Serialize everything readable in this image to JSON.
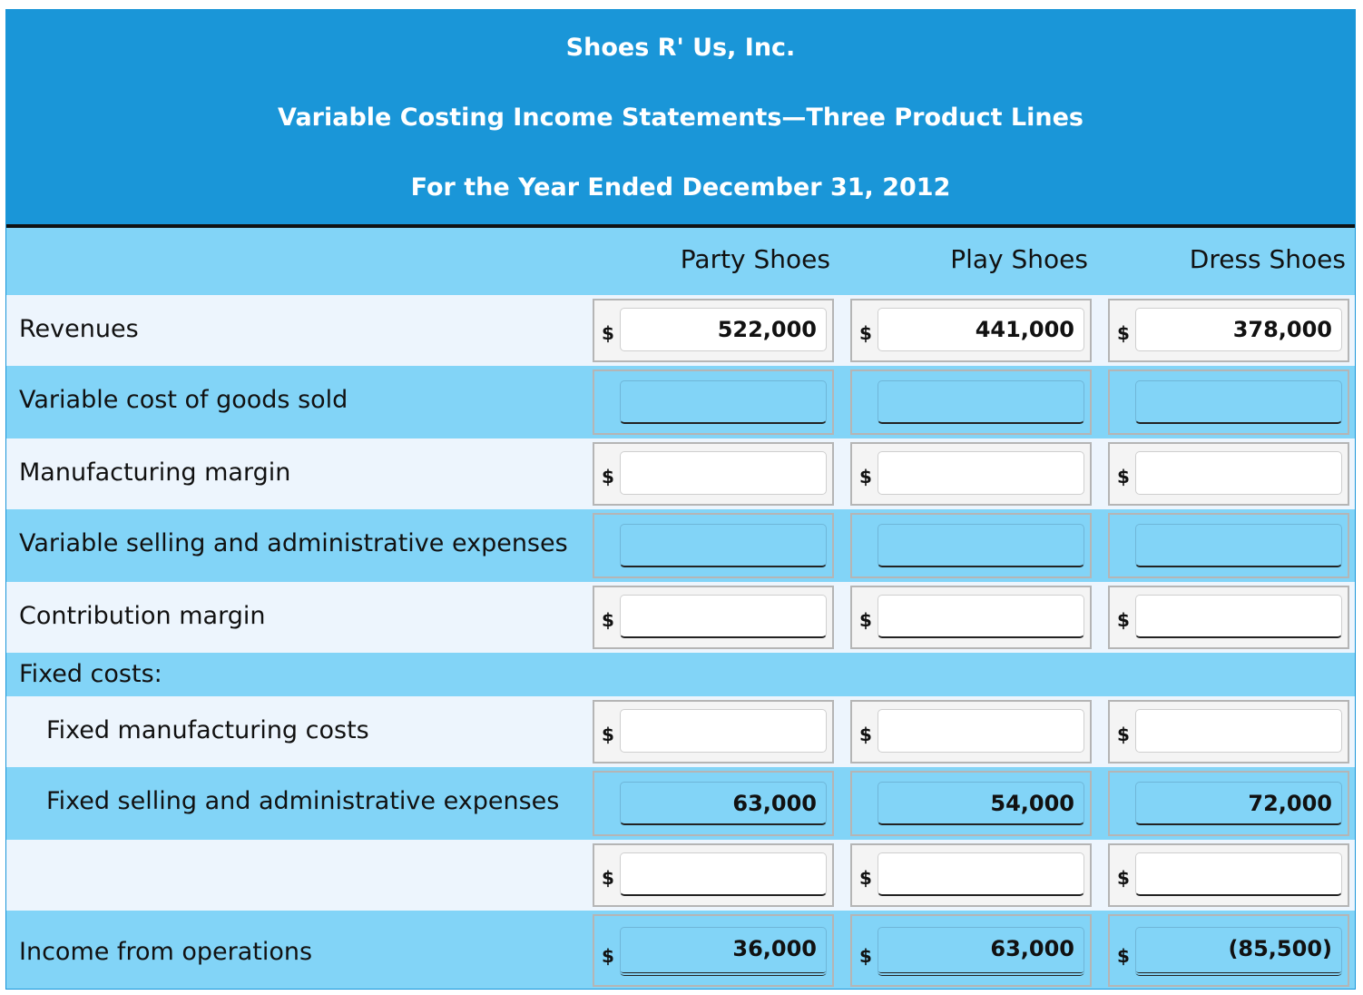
{
  "header": {
    "company": "Shoes R' Us, Inc.",
    "statement": "Variable Costing Income Statements—Three Product Lines",
    "period": "For the Year Ended December 31, 2012"
  },
  "columns": [
    "Party Shoes",
    "Play Shoes",
    "Dress Shoes"
  ],
  "currency_symbol": "$",
  "rows": {
    "revenues": {
      "label": "Revenues",
      "values": [
        "522,000",
        "441,000",
        "378,000"
      ]
    },
    "variable_cogs": {
      "label": "Variable cost of goods sold",
      "values": [
        "",
        "",
        ""
      ]
    },
    "manufacturing_margin": {
      "label": "Manufacturing margin",
      "values": [
        "",
        "",
        ""
      ]
    },
    "variable_selling": {
      "label": "Variable selling and administrative expenses",
      "values": [
        "",
        "",
        ""
      ]
    },
    "contribution_margin": {
      "label": "Contribution margin",
      "values": [
        "",
        "",
        ""
      ]
    },
    "fixed_costs_heading": {
      "label": "Fixed costs:"
    },
    "fixed_manufacturing": {
      "label": "Fixed manufacturing costs",
      "values": [
        "",
        "",
        ""
      ]
    },
    "fixed_selling": {
      "label": "Fixed selling and administrative expenses",
      "values": [
        "63,000",
        "54,000",
        "72,000"
      ]
    },
    "blank_total": {
      "label": "",
      "values": [
        "",
        "",
        ""
      ]
    },
    "income": {
      "label": "Income from operations",
      "values": [
        "36,000",
        "63,000",
        "(85,500)"
      ]
    }
  }
}
